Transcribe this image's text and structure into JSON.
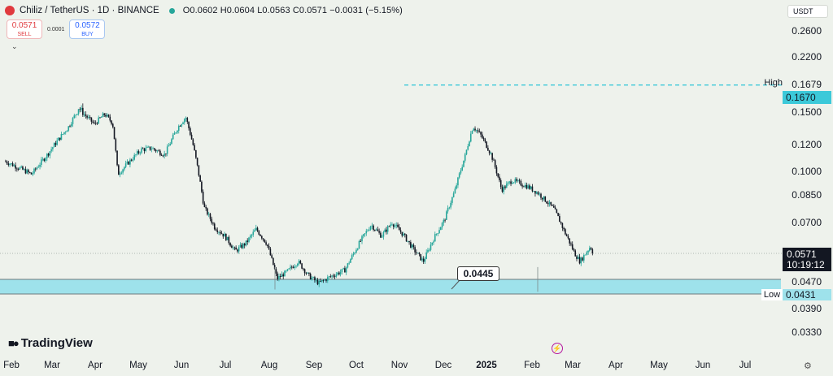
{
  "header": {
    "title": "Chiliz / TetherUS · 1D · BINANCE",
    "ohlc": "O0.0602 H0.0604 L0.0563 C0.0571 −0.0031 (−5.15%)"
  },
  "trade": {
    "sell_price": "0.0571",
    "sell_label": "SELL",
    "spread": "0.0001",
    "buy_price": "0.0572",
    "buy_label": "BUY"
  },
  "currency": "USDT",
  "price_axis": {
    "labels": [
      {
        "text": "0.2600",
        "price": 0.26
      },
      {
        "text": "0.2200",
        "price": 0.22
      },
      {
        "text": "0.1500",
        "price": 0.15
      },
      {
        "text": "0.1200",
        "price": 0.12
      },
      {
        "text": "0.1000",
        "price": 0.1
      },
      {
        "text": "0.0850",
        "price": 0.085
      },
      {
        "text": "0.0700",
        "price": 0.07
      },
      {
        "text": "0.0470",
        "price": 0.047
      },
      {
        "text": "0.0390",
        "price": 0.039
      },
      {
        "text": "0.0330",
        "price": 0.033
      }
    ],
    "high_label": "High",
    "high_value": "0.1679",
    "target_value": "0.1670",
    "current_price": "0.0571",
    "countdown": "10:19:12",
    "low_label": "Low",
    "low_value": "0.0431"
  },
  "callout": "0.0445",
  "zone": {
    "top": 0.0478,
    "bottom": 0.0431
  },
  "target_line": 0.167,
  "current_line": 0.0571,
  "time_axis": [
    {
      "text": "Feb",
      "bold": false
    },
    {
      "text": "Mar",
      "bold": false
    },
    {
      "text": "Apr",
      "bold": false
    },
    {
      "text": "May",
      "bold": false
    },
    {
      "text": "Jun",
      "bold": false
    },
    {
      "text": "Jul",
      "bold": false
    },
    {
      "text": "Aug",
      "bold": false
    },
    {
      "text": "Sep",
      "bold": false
    },
    {
      "text": "Oct",
      "bold": false
    },
    {
      "text": "Nov",
      "bold": false
    },
    {
      "text": "Dec",
      "bold": false
    },
    {
      "text": "2025",
      "bold": true
    },
    {
      "text": "Feb",
      "bold": false
    },
    {
      "text": "Mar",
      "bold": false
    },
    {
      "text": "Apr",
      "bold": false
    },
    {
      "text": "May",
      "bold": false
    },
    {
      "text": "Jun",
      "bold": false
    },
    {
      "text": "Jul",
      "bold": false
    }
  ],
  "logo_text": "TradingView",
  "colors": {
    "up": "#26a69a",
    "down": "#131722",
    "zone": "#9ee2eb",
    "accent": "#3cc9d9"
  },
  "price_path": [
    [
      0,
      0.107
    ],
    [
      0.05,
      0.098
    ],
    [
      0.08,
      0.112
    ],
    [
      0.12,
      0.135
    ],
    [
      0.14,
      0.153
    ],
    [
      0.17,
      0.138
    ],
    [
      0.19,
      0.148
    ],
    [
      0.205,
      0.139
    ],
    [
      0.215,
      0.098
    ],
    [
      0.24,
      0.108
    ],
    [
      0.26,
      0.116
    ],
    [
      0.28,
      0.117
    ],
    [
      0.305,
      0.112
    ],
    [
      0.33,
      0.135
    ],
    [
      0.345,
      0.145
    ],
    [
      0.36,
      0.118
    ],
    [
      0.38,
      0.078
    ],
    [
      0.4,
      0.068
    ],
    [
      0.42,
      0.064
    ],
    [
      0.44,
      0.058
    ],
    [
      0.46,
      0.061
    ],
    [
      0.48,
      0.067
    ],
    [
      0.5,
      0.061
    ],
    [
      0.52,
      0.048
    ],
    [
      0.54,
      0.0505
    ],
    [
      0.56,
      0.054
    ],
    [
      0.58,
      0.049
    ],
    [
      0.6,
      0.0465
    ],
    [
      0.62,
      0.0485
    ],
    [
      0.65,
      0.051
    ],
    [
      0.68,
      0.062
    ],
    [
      0.7,
      0.069
    ],
    [
      0.72,
      0.064
    ],
    [
      0.74,
      0.07
    ],
    [
      0.76,
      0.065
    ],
    [
      0.78,
      0.059
    ],
    [
      0.8,
      0.054
    ],
    [
      0.82,
      0.063
    ],
    [
      0.84,
      0.071
    ],
    [
      0.86,
      0.087
    ],
    [
      0.88,
      0.111
    ],
    [
      0.895,
      0.136
    ],
    [
      0.91,
      0.128
    ],
    [
      0.93,
      0.112
    ],
    [
      0.95,
      0.088
    ],
    [
      0.97,
      0.094
    ],
    [
      1.0,
      0.09
    ],
    [
      1.02,
      0.086
    ],
    [
      1.05,
      0.077
    ],
    [
      1.07,
      0.066
    ],
    [
      1.09,
      0.057
    ],
    [
      1.1,
      0.054
    ],
    [
      1.12,
      0.0598
    ],
    [
      1.125,
      0.0571
    ]
  ]
}
